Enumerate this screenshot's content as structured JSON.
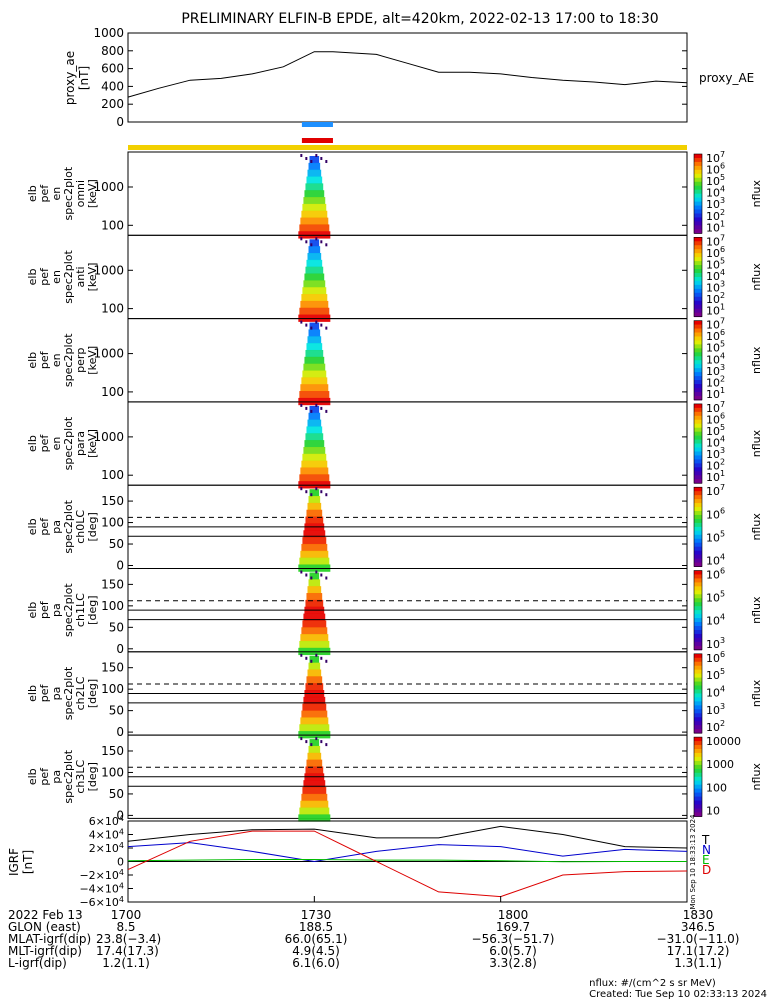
{
  "title": "PRELIMINARY ELFIN-B EPDE, alt=420km, 2022-02-13 17:00 to 18:30",
  "colors": {
    "blue_bar": "#1e90ff",
    "red_bar": "#e00000",
    "yellow_bar": "#f2d000",
    "igrf_T": "#000000",
    "igrf_N": "#0000cc",
    "igrf_E": "#00bb00",
    "igrf_D": "#dd0000"
  },
  "chart_data": [
    {
      "type": "line",
      "panel": "proxy_ae",
      "ylabel": "proxy_ae [nT]",
      "legend": "proxy_AE",
      "yticks": [
        "1000",
        "800",
        "600",
        "400",
        "200",
        "0"
      ],
      "ylim": [
        0,
        1000
      ],
      "x_minutes": [
        0,
        5,
        10,
        15,
        20,
        25,
        30,
        33,
        40,
        45,
        50,
        55,
        60,
        65,
        70,
        75,
        80,
        85,
        90
      ],
      "values": [
        280,
        380,
        470,
        490,
        540,
        620,
        790,
        790,
        760,
        660,
        560,
        560,
        540,
        500,
        470,
        450,
        420,
        460,
        440
      ]
    },
    {
      "type": "heatmap",
      "panel": "spectrograms",
      "panels": [
        {
          "ylabel": [
            "elb",
            "pef",
            "en",
            "spec2plot",
            "omni",
            "[keV]"
          ],
          "yticks": [
            "1000",
            "100"
          ],
          "cbar_ticks": [
            "10",
            "10",
            "10",
            "10",
            "10",
            "10",
            "10"
          ],
          "cbar_exps": [
            "7",
            "6",
            "5",
            "4",
            "3",
            "2",
            "1"
          ],
          "cbar_label": "nflux"
        },
        {
          "ylabel": [
            "elb",
            "pef",
            "en",
            "spec2plot",
            "anti",
            "[keV]"
          ],
          "yticks": [
            "1000",
            "100"
          ],
          "cbar_ticks": [
            "10",
            "10",
            "10",
            "10",
            "10",
            "10",
            "10"
          ],
          "cbar_exps": [
            "7",
            "6",
            "5",
            "4",
            "3",
            "2",
            "1"
          ],
          "cbar_label": "nflux"
        },
        {
          "ylabel": [
            "elb",
            "pef",
            "en",
            "spec2plot",
            "perp",
            "[keV]"
          ],
          "yticks": [
            "1000",
            "100"
          ],
          "cbar_ticks": [
            "10",
            "10",
            "10",
            "10",
            "10",
            "10",
            "10"
          ],
          "cbar_exps": [
            "7",
            "6",
            "5",
            "4",
            "3",
            "2",
            "1"
          ],
          "cbar_label": "nflux"
        },
        {
          "ylabel": [
            "elb",
            "pef",
            "en",
            "spec2plot",
            "para",
            "[keV]"
          ],
          "yticks": [
            "1000",
            "100"
          ],
          "cbar_ticks": [
            "10",
            "10",
            "10",
            "10",
            "10",
            "10",
            "10"
          ],
          "cbar_exps": [
            "7",
            "6",
            "5",
            "4",
            "3",
            "2",
            "1"
          ],
          "cbar_label": "nflux"
        },
        {
          "ylabel": [
            "elb",
            "pef",
            "pa",
            "spec2plot",
            "ch0LC",
            "[deg]"
          ],
          "yticks": [
            "150",
            "100",
            "50",
            "0"
          ],
          "cbar_ticks": [
            "10",
            "10",
            "10",
            "10"
          ],
          "cbar_exps": [
            "7",
            "6",
            "5",
            "4"
          ],
          "cbar_label": "nflux"
        },
        {
          "ylabel": [
            "elb",
            "pef",
            "pa",
            "spec2plot",
            "ch1LC",
            "[deg]"
          ],
          "yticks": [
            "150",
            "100",
            "50",
            "0"
          ],
          "cbar_ticks": [
            "10",
            "10",
            "10",
            "10"
          ],
          "cbar_exps": [
            "6",
            "5",
            "4",
            "3"
          ],
          "cbar_label": "nflux"
        },
        {
          "ylabel": [
            "elb",
            "pef",
            "pa",
            "spec2plot",
            "ch2LC",
            "[deg]"
          ],
          "yticks": [
            "150",
            "100",
            "50",
            "0"
          ],
          "cbar_ticks": [
            "10",
            "10",
            "10",
            "10",
            "10"
          ],
          "cbar_exps": [
            "6",
            "5",
            "4",
            "3",
            "2"
          ],
          "cbar_label": "nflux"
        },
        {
          "ylabel": [
            "elb",
            "pef",
            "pa",
            "spec2plot",
            "ch3LC",
            "[deg]"
          ],
          "yticks": [
            "150",
            "100",
            "50",
            "0"
          ],
          "cbar_ticks": [
            "10000",
            "1000",
            "100",
            "10"
          ],
          "cbar_exps": [
            "",
            "",
            "",
            ""
          ],
          "cbar_label": "nflux"
        }
      ]
    },
    {
      "type": "line",
      "panel": "igrf",
      "ylabel": "IGRF [nT]",
      "yticks": [
        "6×10",
        "4×10",
        "2×10",
        "0",
        "−2×10",
        "−4×10",
        "−6×10"
      ],
      "ytick_exps": [
        "4",
        "4",
        "4",
        "",
        "4",
        "4",
        "4"
      ],
      "ylim": [
        -60000,
        60000
      ],
      "x_minutes": [
        0,
        10,
        20,
        30,
        40,
        50,
        60,
        70,
        80,
        90
      ],
      "series": [
        {
          "name": "T",
          "values": [
            30000,
            40000,
            47000,
            48000,
            35000,
            35000,
            52000,
            40000,
            22000,
            20000
          ]
        },
        {
          "name": "N",
          "values": [
            22000,
            28000,
            15000,
            0,
            15000,
            25000,
            22000,
            8000,
            18000,
            15000
          ]
        },
        {
          "name": "E",
          "values": [
            1000,
            2000,
            3000,
            3000,
            2000,
            2000,
            1000,
            -500,
            0,
            0
          ]
        },
        {
          "name": "D",
          "values": [
            -12000,
            30000,
            45000,
            45000,
            0,
            -45000,
            -52000,
            -20000,
            -15000,
            -14000
          ]
        }
      ]
    }
  ],
  "side_label": "Mon Sep 10 18:33:13 2024",
  "footer": {
    "rows": [
      [
        "2022 Feb 13",
        "1700",
        "1730",
        "1800",
        "1830"
      ],
      [
        "GLON (east)",
        "8.5",
        "188.5",
        "169.7",
        "346.5"
      ],
      [
        "MLAT-igrf(dip)",
        "23.8(−3.4)",
        "66.0(65.1)",
        "−56.3(−51.7)",
        "−31.0(−11.0)"
      ],
      [
        "MLT-igrf(dip)",
        "17.4(17.3)",
        "4.9(4.5)",
        "6.0(5.7)",
        "17.1(17.2)"
      ],
      [
        "L-igrf(dip)",
        "1.2(1.1)",
        "6.1(6.0)",
        "3.3(2.8)",
        "1.3(1.1)"
      ]
    ],
    "credit1": "nflux: #/(cm^2 s sr MeV)",
    "credit2": "Created: Tue Sep 10 02:33:13 2024"
  }
}
